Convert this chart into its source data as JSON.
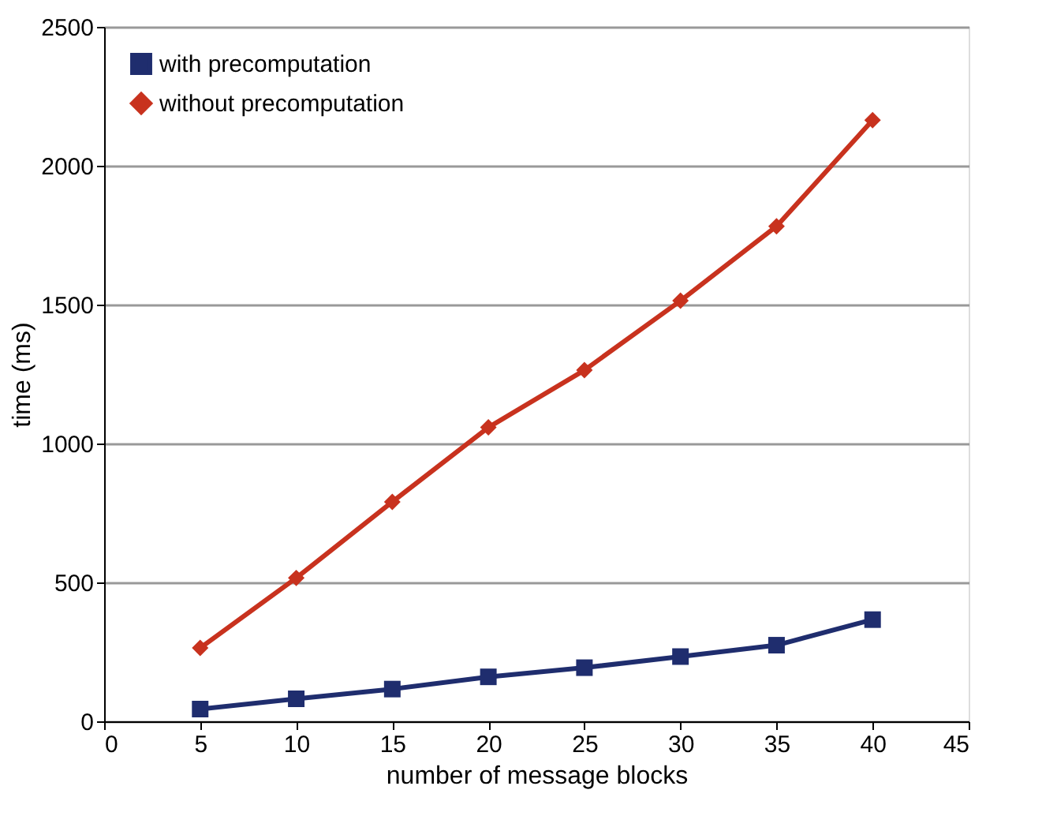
{
  "chart_data": {
    "type": "line",
    "xlabel": "number of message blocks",
    "ylabel": "time (ms)",
    "x": [
      5,
      10,
      15,
      20,
      25,
      30,
      35,
      40
    ],
    "series": [
      {
        "name": "with precomputation",
        "color": "#1f2d6e",
        "marker": "square",
        "values": [
          44,
          81,
          116,
          160,
          193,
          233,
          274,
          366
        ]
      },
      {
        "name": "without precomputation",
        "color": "#c8321e",
        "marker": "diamond",
        "values": [
          264,
          516,
          790,
          1058,
          1264,
          1514,
          1782,
          2164
        ]
      }
    ],
    "xlim": [
      0,
      45
    ],
    "xticks": [
      0,
      5,
      10,
      15,
      20,
      25,
      30,
      35,
      40,
      45
    ],
    "ylim": [
      0,
      2500
    ],
    "yticks": [
      0,
      500,
      1000,
      1500,
      2000,
      2500
    ],
    "grid": "y",
    "legend": "top left",
    "line_style": "solid"
  }
}
